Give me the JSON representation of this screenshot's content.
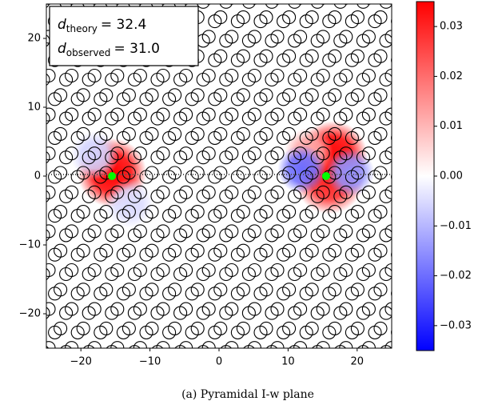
{
  "chart_data": {
    "type": "heatmap",
    "caption": "(a) Pyramidal I-w plane",
    "xlim": [
      -25,
      25
    ],
    "ylim": [
      -25,
      25
    ],
    "xticks": [
      -20,
      -10,
      0,
      10,
      20
    ],
    "yticks": [
      -20,
      -10,
      0,
      10,
      20
    ],
    "annotations": [
      {
        "symbol": "d",
        "subscript": "theory",
        "text": "= 32.4",
        "value": 32.4
      },
      {
        "symbol": "d",
        "subscript": "observed",
        "text": "= 31.0",
        "value": 31.0
      }
    ],
    "field": [
      {
        "x": -15.5,
        "y": 0.5,
        "value": 0.035
      },
      {
        "x": 16.5,
        "y": 3,
        "value": 0.035
      },
      {
        "x": 16,
        "y": -0.5,
        "value": 0.03
      },
      {
        "x": 13,
        "y": 3.5,
        "value": 0.012
      },
      {
        "x": -18,
        "y": 3,
        "value": -0.006
      },
      {
        "x": 12,
        "y": 1,
        "value": -0.02
      },
      {
        "x": 19,
        "y": 0.5,
        "value": -0.015
      },
      {
        "x": -13,
        "y": -4,
        "value": -0.005
      }
    ],
    "points": {
      "x": [
        -15.5,
        15.5
      ],
      "y": [
        0,
        0
      ],
      "color": "#00ff00"
    },
    "colormap": "bwr",
    "clim": [
      -0.035,
      0.035
    ],
    "cticks": [
      {
        "value": 0.03,
        "label": "0.03"
      },
      {
        "value": 0.02,
        "label": "0.02"
      },
      {
        "value": 0.01,
        "label": "0.01"
      },
      {
        "value": 0,
        "label": "0.00"
      },
      {
        "value": -0.01,
        "label": "−0.01"
      },
      {
        "value": -0.02,
        "label": "−0.02"
      },
      {
        "value": -0.03,
        "label": "−0.03"
      }
    ],
    "xticklabels_minus": [
      {
        "value": -20,
        "label": "−20"
      },
      {
        "value": -10,
        "label": "−10"
      }
    ]
  }
}
